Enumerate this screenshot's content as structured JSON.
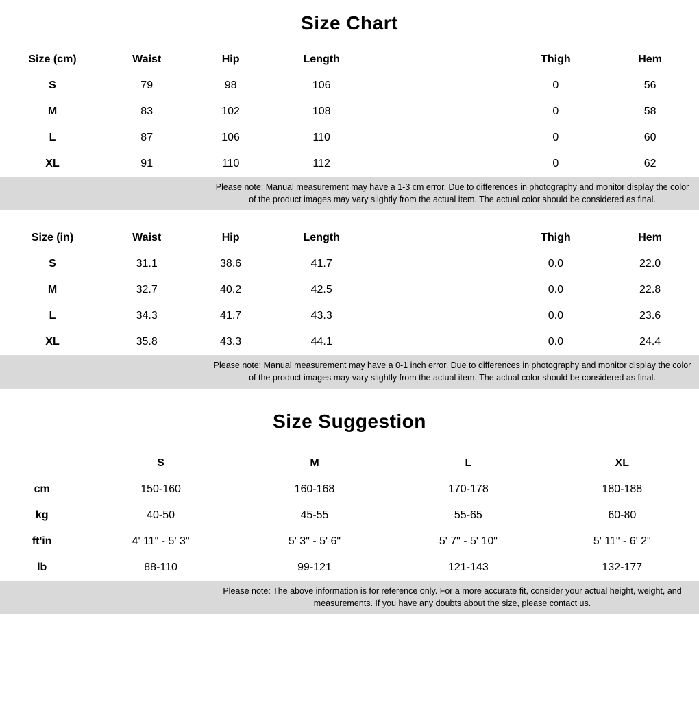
{
  "title_size_chart": "Size Chart",
  "title_size_suggestion": "Size Suggestion",
  "colors": {
    "background": "#ffffff",
    "text": "#000000",
    "note_bg": "#d9d9d9"
  },
  "size_chart_cm": {
    "type": "table",
    "columns": [
      "Size (cm)",
      "Waist",
      "Hip",
      "Length",
      "Thigh",
      "Hem"
    ],
    "rows": [
      [
        "S",
        "79",
        "98",
        "106",
        "0",
        "56"
      ],
      [
        "M",
        "83",
        "102",
        "108",
        "0",
        "58"
      ],
      [
        "L",
        "87",
        "106",
        "110",
        "0",
        "60"
      ],
      [
        "XL",
        "91",
        "110",
        "112",
        "0",
        "62"
      ]
    ],
    "note": "Please note: Manual measurement may have a 1-3 cm error. Due to differences in photography and monitor display the color of the product images may vary slightly from the actual item. The actual color should be considered as final."
  },
  "size_chart_in": {
    "type": "table",
    "columns": [
      "Size (in)",
      "Waist",
      "Hip",
      "Length",
      "Thigh",
      "Hem"
    ],
    "rows": [
      [
        "S",
        "31.1",
        "38.6",
        "41.7",
        "0.0",
        "22.0"
      ],
      [
        "M",
        "32.7",
        "40.2",
        "42.5",
        "0.0",
        "22.8"
      ],
      [
        "L",
        "34.3",
        "41.7",
        "43.3",
        "0.0",
        "23.6"
      ],
      [
        "XL",
        "35.8",
        "43.3",
        "44.1",
        "0.0",
        "24.4"
      ]
    ],
    "note": "Please note: Manual measurement may have a 0-1 inch error. Due to differences in photography and monitor display the color of the product images may vary slightly from the actual item. The actual color should be considered as final."
  },
  "size_suggestion": {
    "type": "table",
    "sizes": [
      "S",
      "M",
      "L",
      "XL"
    ],
    "metric_rows": [
      {
        "label": "cm",
        "values": [
          "150-160",
          "160-168",
          "170-178",
          "180-188"
        ]
      },
      {
        "label": "kg",
        "values": [
          "40-50",
          "45-55",
          "55-65",
          "60-80"
        ]
      }
    ],
    "imperial_rows": [
      {
        "label": "ft'in",
        "values": [
          "4' 11\" - 5' 3\"",
          "5' 3\" - 5' 6\"",
          "5' 7\" - 5' 10\"",
          "5' 11\" - 6' 2\""
        ]
      },
      {
        "label": "lb",
        "values": [
          "88-110",
          "99-121",
          "121-143",
          "132-177"
        ]
      }
    ],
    "note": "Please note: The above information is for reference only. For a more accurate fit, consider your actual height, weight, and measurements. If you have any doubts about the size, please contact us."
  }
}
